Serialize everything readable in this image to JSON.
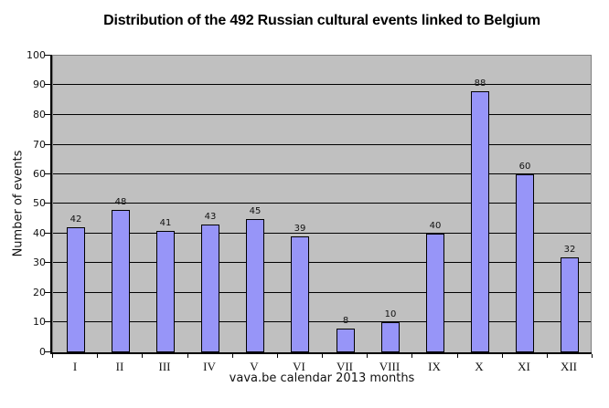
{
  "chart_data": {
    "type": "bar",
    "title": "Distribution of the 492 Russian cultural events linked to Belgium",
    "xlabel": "vava.be calendar 2013 months",
    "ylabel": "Number of events",
    "categories": [
      "I",
      "II",
      "III",
      "IV",
      "V",
      "VI",
      "VII",
      "VIII",
      "IX",
      "X",
      "XI",
      "XII"
    ],
    "values": [
      42,
      48,
      41,
      43,
      45,
      39,
      8,
      10,
      40,
      88,
      60,
      32
    ],
    "ylim": [
      0,
      100
    ],
    "ytick_step": 10,
    "grid": true,
    "legend": "none",
    "colors": {
      "bar_fill": "#9795F8",
      "bar_border": "#000000",
      "plot_background": "#C0C0C0",
      "plot_border": "#808080",
      "gridline": "#000000",
      "axis_line": "#000000",
      "text": "#111111",
      "page_background": "#FFFFFF"
    }
  }
}
